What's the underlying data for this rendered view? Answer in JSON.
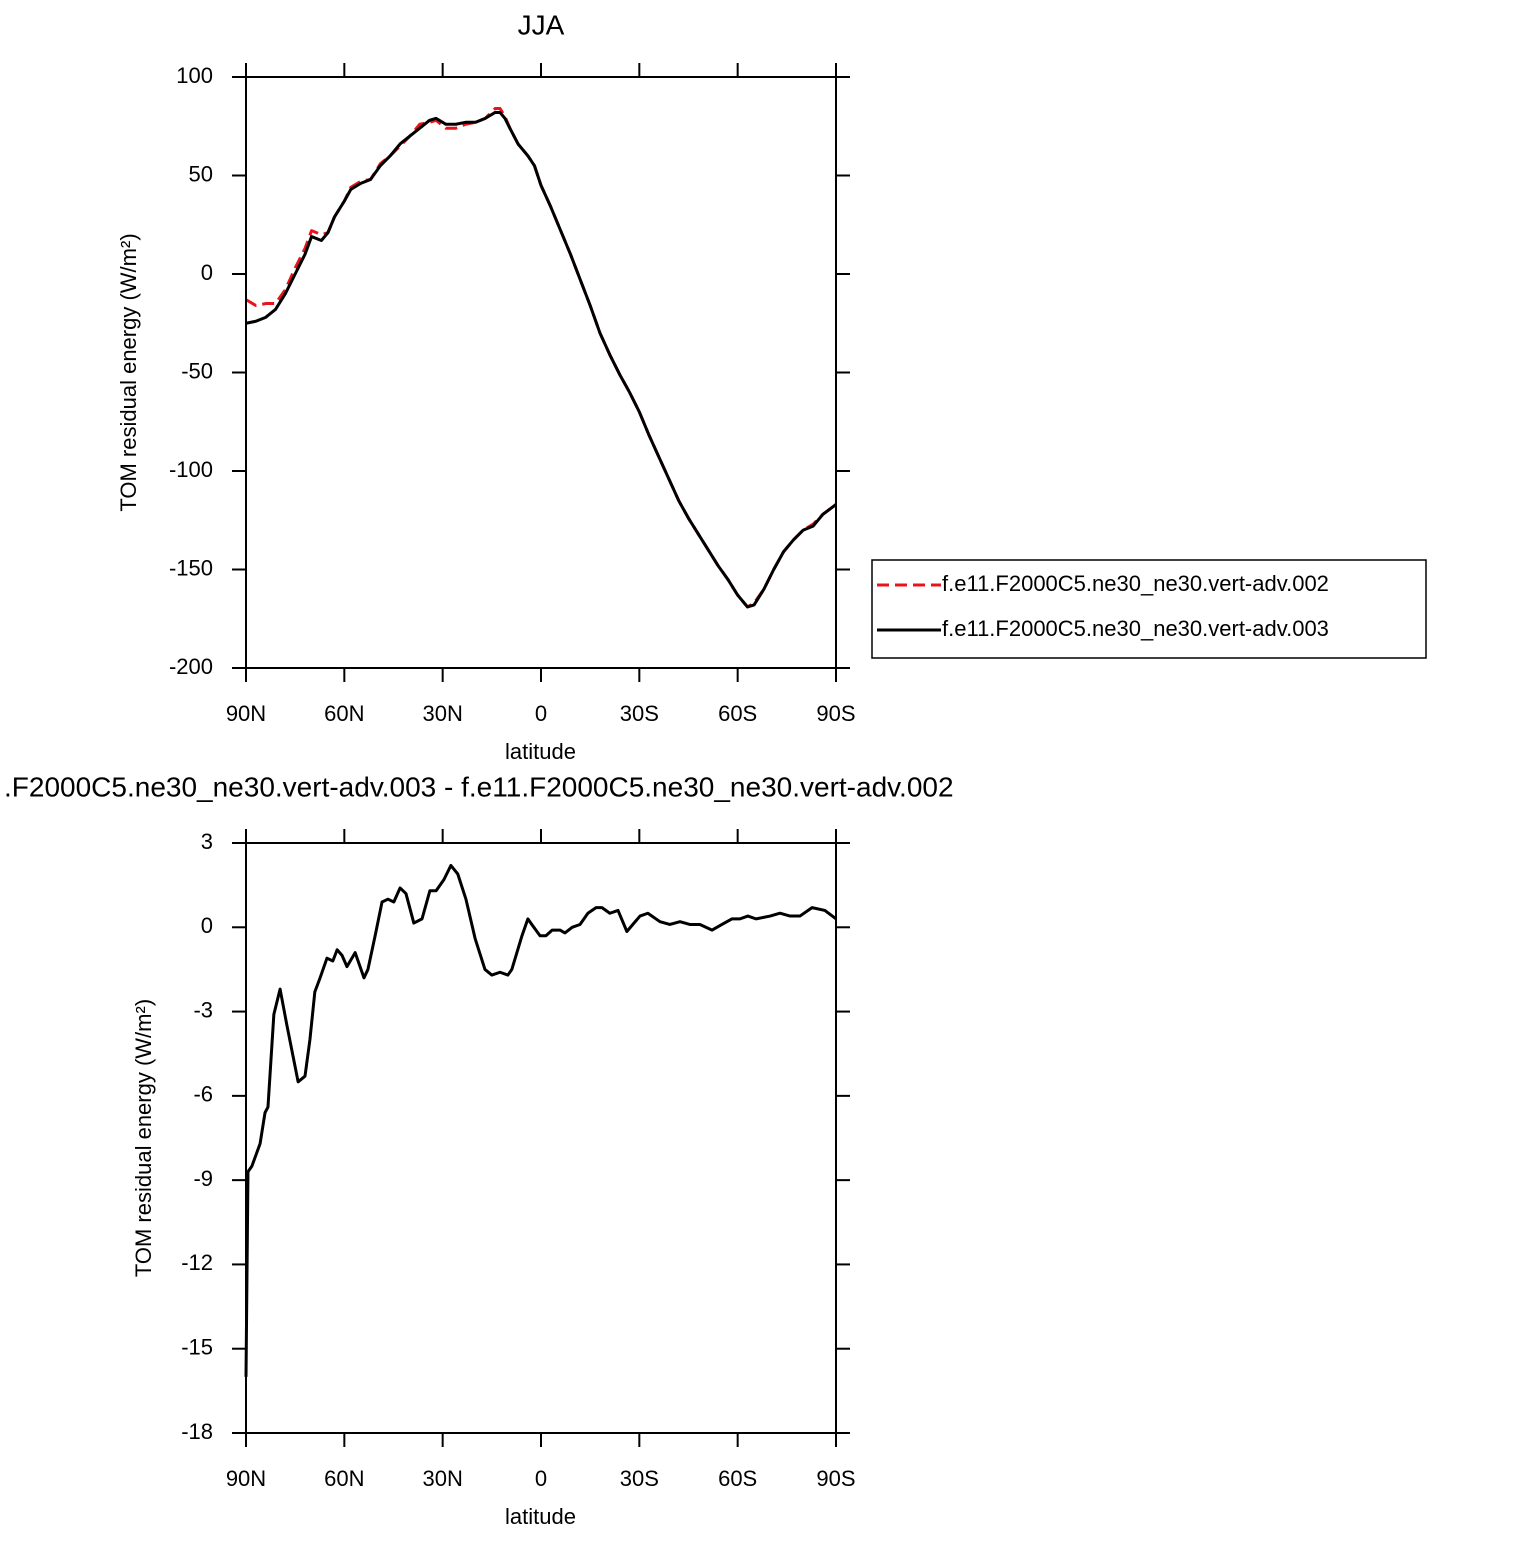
{
  "chart_data": [
    {
      "type": "line",
      "title": "JJA",
      "xlabel": "latitude",
      "ylabel": "TOM residual energy (W/m²)",
      "legend": "right",
      "x": [
        90,
        87,
        84,
        81,
        78,
        75,
        72,
        70,
        67,
        65,
        63,
        60,
        58,
        55,
        52,
        49,
        46,
        43,
        40,
        37,
        34,
        32,
        29,
        26,
        23,
        20,
        17,
        14,
        12.5,
        11,
        9.5,
        7,
        4,
        2,
        0,
        -3,
        -6,
        -9,
        -12,
        -15,
        -18,
        -21,
        -24,
        -27,
        -30,
        -33,
        -36,
        -39,
        -42,
        -45,
        -48,
        -51,
        -54,
        -57,
        -60,
        -63,
        -65,
        -68,
        -71,
        -74,
        -77,
        -80,
        -83,
        -86,
        -90
      ],
      "series": [
        {
          "name": "f.e11.F2000C5.ne30_ne30.vert-adv.002",
          "color": "#e8141c",
          "dashed": true,
          "values": [
            -13,
            -16,
            -15,
            -15,
            -8,
            3,
            13,
            22,
            20,
            21,
            29,
            37,
            44,
            47,
            48,
            56,
            60,
            65,
            70,
            76,
            77,
            78,
            74,
            74,
            76,
            77,
            79,
            84,
            84,
            80,
            74,
            66,
            60,
            55,
            45,
            34,
            22,
            10,
            -3,
            -16,
            -30,
            -41,
            -51,
            -60,
            -70,
            -82,
            -93,
            -104,
            -115,
            -124,
            -132,
            -140,
            -148,
            -155,
            -163,
            -169,
            -167,
            -160,
            -150,
            -141,
            -135,
            -130,
            -127,
            -122,
            -117
          ]
        },
        {
          "name": "f.e11.F2000C5.ne30_ne30.vert-adv.003",
          "color": "#000000",
          "dashed": false,
          "values": [
            -25,
            -24,
            -22,
            -18,
            -10,
            0,
            10,
            19,
            17,
            21,
            29,
            37,
            43,
            46,
            48,
            55,
            60,
            66,
            70,
            74,
            78,
            79,
            76,
            76,
            77,
            77,
            79,
            82,
            82,
            79,
            74,
            66,
            60,
            55,
            45,
            34,
            22,
            10,
            -3,
            -16,
            -30,
            -41,
            -51,
            -60,
            -70,
            -82,
            -93,
            -104,
            -115,
            -124,
            -132,
            -140,
            -148,
            -155,
            -163,
            -169,
            -168,
            -160,
            -150,
            -141,
            -135,
            -130,
            -128,
            -122,
            -117
          ]
        }
      ],
      "xlim": [
        90,
        -90
      ],
      "xticks": [
        {
          "value": 90,
          "label": "90N"
        },
        {
          "value": 60,
          "label": "60N"
        },
        {
          "value": 30,
          "label": "30N"
        },
        0,
        {
          "value": -30,
          "label": "30S"
        },
        {
          "value": -60,
          "label": "60S"
        },
        {
          "value": -90,
          "label": "90S"
        }
      ],
      "ylim": [
        -200,
        100
      ],
      "yticks": [
        100,
        50,
        0,
        -50,
        -100,
        -150,
        -200
      ]
    },
    {
      "type": "line",
      "title": ".F2000C5.ne30_ne30.vert-adv.003 - f.e11.F2000C5.ne30_ne30.vert-adv.002",
      "xlabel": "latitude",
      "ylabel": "TOM residual energy (W/m²)",
      "x": [
        90,
        89.4,
        88.2,
        85.7,
        84.2,
        83.3,
        81.5,
        79.6,
        77.5,
        74.1,
        72,
        70.5,
        69,
        67.4,
        65.3,
        63.5,
        62.2,
        60.7,
        59.2,
        56.7,
        54,
        52.8,
        50.6,
        48.5,
        46.7,
        44.9,
        43,
        41.2,
        38.8,
        36.3,
        33.9,
        32,
        29.6,
        27.5,
        25.4,
        22.9,
        20.1,
        17.1,
        15,
        12.5,
        10.1,
        8.9,
        5.8,
        4,
        2.8,
        0.3,
        -1.5,
        -3.4,
        -5.8,
        -7.3,
        -9.5,
        -11.9,
        -14.3,
        -16.8,
        -18.6,
        -21,
        -23.5,
        -26.2,
        -28,
        -30.2,
        -32.6,
        -36.3,
        -39.3,
        -42.4,
        -45.4,
        -48.5,
        -52.2,
        -55.2,
        -58.3,
        -60.7,
        -63.1,
        -65.6,
        -69.9,
        -72.9,
        -76,
        -79,
        -82.7,
        -86.6,
        -90
      ],
      "series": [
        {
          "color": "#000000",
          "dashed": false,
          "values": [
            -16,
            -8.7,
            -8.5,
            -7.7,
            -6.6,
            -6.4,
            -3.1,
            -2.2,
            -3.5,
            -5.5,
            -5.3,
            -4,
            -2.3,
            -1.8,
            -1.1,
            -1.2,
            -0.8,
            -1,
            -1.4,
            -0.9,
            -1.8,
            -1.5,
            -0.3,
            0.9,
            1,
            0.9,
            1.4,
            1.2,
            0.15,
            0.3,
            1.3,
            1.3,
            1.7,
            2.2,
            1.9,
            1,
            -0.4,
            -1.5,
            -1.7,
            -1.6,
            -1.7,
            -1.5,
            -0.3,
            0.3,
            0.1,
            -0.3,
            -0.3,
            -0.1,
            -0.1,
            -0.2,
            0,
            0.1,
            0.5,
            0.7,
            0.7,
            0.5,
            0.6,
            -0.15,
            0.1,
            0.4,
            0.5,
            0.2,
            0.1,
            0.2,
            0.1,
            0.1,
            -0.1,
            0.1,
            0.3,
            0.3,
            0.4,
            0.3,
            0.4,
            0.5,
            0.4,
            0.4,
            0.7,
            0.6,
            0.3
          ]
        }
      ],
      "xlim": [
        90,
        -90
      ],
      "xticks": [
        {
          "value": 90,
          "label": "90N"
        },
        {
          "value": 60,
          "label": "60N"
        },
        {
          "value": 30,
          "label": "30N"
        },
        0,
        {
          "value": -30,
          "label": "30S"
        },
        {
          "value": -60,
          "label": "60S"
        },
        {
          "value": -90,
          "label": "90S"
        }
      ],
      "ylim": [
        -18,
        3
      ],
      "yticks": [
        3,
        0,
        -3,
        -6,
        -9,
        -12,
        -15,
        -18
      ]
    }
  ]
}
